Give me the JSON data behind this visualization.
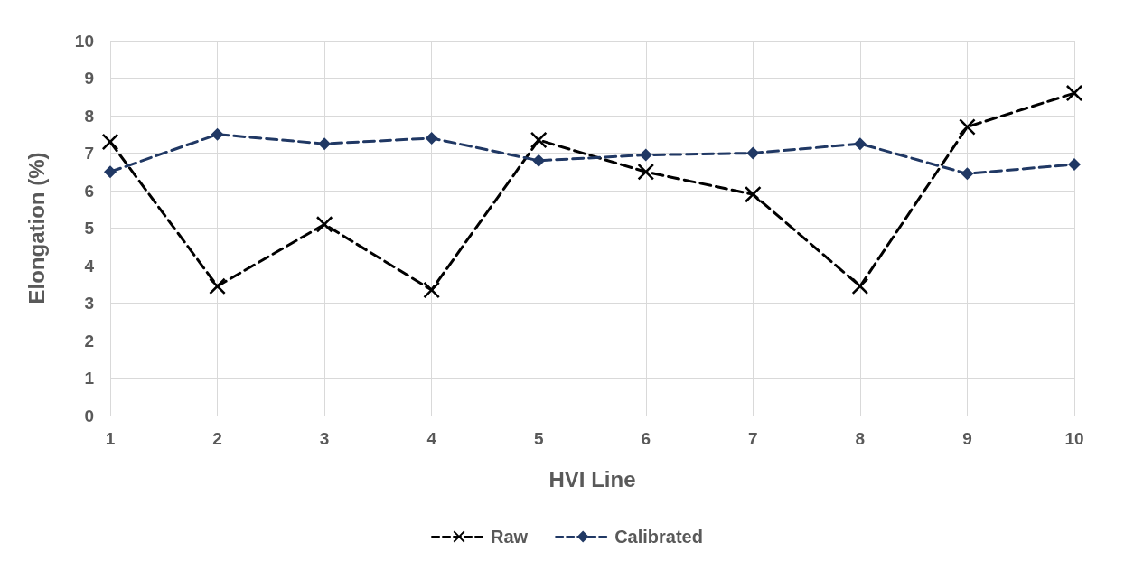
{
  "chart_data": {
    "type": "line",
    "xlabel": "HVI Line",
    "ylabel": "Elongation (%)",
    "categories": [
      "1",
      "2",
      "3",
      "4",
      "5",
      "6",
      "7",
      "8",
      "9",
      "10"
    ],
    "ylim": [
      0,
      10
    ],
    "yticks": [
      0,
      1,
      2,
      3,
      4,
      5,
      6,
      7,
      8,
      9,
      10
    ],
    "grid": true,
    "legend": "bottom",
    "line_style": "dashed",
    "series": [
      {
        "name": "Raw",
        "color": "#000000",
        "marker": "cross",
        "values": [
          7.3,
          3.45,
          5.1,
          3.35,
          7.35,
          6.5,
          5.9,
          3.45,
          7.7,
          8.6
        ]
      },
      {
        "name": "Calibrated",
        "color": "#203864",
        "marker": "diamond",
        "values": [
          6.5,
          7.5,
          7.25,
          7.4,
          6.8,
          6.95,
          7.0,
          7.25,
          6.45,
          6.7
        ]
      }
    ]
  }
}
